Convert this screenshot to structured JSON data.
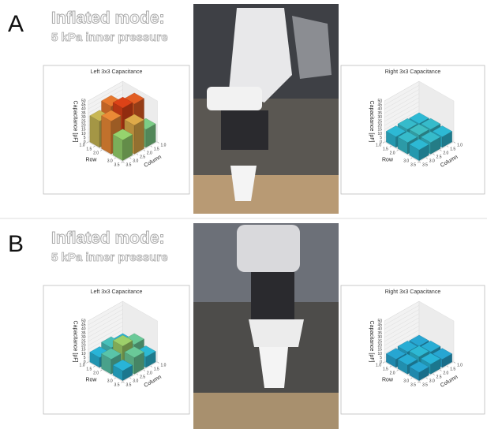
{
  "panels": [
    {
      "label": "A",
      "title": "Inflated mode:",
      "subtitle": "5 kPa inner pressure",
      "charts": [
        {
          "type": "bar3d",
          "title": "Left 3x3 Capacitance",
          "zlabel": "Capacitance [pF]",
          "rowlabel": "Row",
          "collabel": "Column",
          "values": [
            [
              28,
              42,
              32
            ],
            [
              45,
              48,
              40
            ],
            [
              22,
              35,
              25
            ]
          ],
          "zlim": [
            0,
            50
          ],
          "zticks": [
            0,
            5,
            10,
            15,
            20,
            25,
            30,
            35,
            40,
            45,
            50
          ],
          "rowlim": [
            1,
            3.5
          ],
          "rowticks": [
            {
              "value": 1,
              "label": "1.0"
            },
            {
              "value": 1.5,
              "label": "1.5"
            },
            {
              "value": 2,
              "label": "2.0"
            },
            {
              "value": 3,
              "label": "3.0"
            },
            {
              "value": 3.5,
              "label": "3.5"
            }
          ],
          "collim": [
            1,
            3.5
          ],
          "colticks": [
            {
              "value": 1,
              "label": "1.0"
            },
            {
              "value": 1.5,
              "label": "1.5"
            },
            {
              "value": 2,
              "label": "2.0"
            },
            {
              "value": 2.5,
              "label": "2.5"
            },
            {
              "value": 3,
              "label": "3.0"
            },
            {
              "value": 3.5,
              "label": "3.5"
            }
          ],
          "colormap": [
            "#1f5fb8",
            "#29b8d8",
            "#96d46e",
            "#f0a040",
            "#d8300f"
          ]
        },
        {
          "type": "bar3d",
          "title": "Right 3x3 Capacitance",
          "zlabel": "Capacitance [pF]",
          "rowlabel": "Row",
          "collabel": "Column",
          "values": [
            [
              13,
              14,
              13
            ],
            [
              14,
              15,
              14
            ],
            [
              13,
              14,
              13
            ]
          ],
          "zlim": [
            0,
            50
          ],
          "zticks": [
            0,
            5,
            10,
            15,
            20,
            25,
            30,
            35,
            40,
            45,
            50
          ],
          "rowlim": [
            1,
            3.5
          ],
          "rowticks": [
            {
              "value": 1,
              "label": "1.0"
            },
            {
              "value": 1.5,
              "label": "1.5"
            },
            {
              "value": 2,
              "label": "2.0"
            },
            {
              "value": 3,
              "label": "3.0"
            },
            {
              "value": 3.5,
              "label": "3.5"
            }
          ],
          "collim": [
            1,
            3.5
          ],
          "colticks": [
            {
              "value": 1,
              "label": "1.0"
            },
            {
              "value": 1.5,
              "label": "1.5"
            },
            {
              "value": 2,
              "label": "2.0"
            },
            {
              "value": 2.5,
              "label": "2.5"
            },
            {
              "value": 3,
              "label": "3.0"
            },
            {
              "value": 3.5,
              "label": "3.5"
            }
          ],
          "colormap": [
            "#1f5fb8",
            "#29b8d8",
            "#96d46e",
            "#f0a040",
            "#d8300f"
          ]
        }
      ]
    },
    {
      "label": "B",
      "title": "Inflated mode:",
      "subtitle": "5 kPa inner pressure",
      "charts": [
        {
          "type": "bar3d",
          "title": "Left 3x3 Capacitance",
          "zlabel": "Capacitance [pF]",
          "rowlabel": "Row",
          "collabel": "Column",
          "values": [
            [
              12,
              16,
              12
            ],
            [
              20,
              26,
              18
            ],
            [
              13,
              20,
              12
            ]
          ],
          "zlim": [
            0,
            50
          ],
          "zticks": [
            0,
            5,
            10,
            15,
            20,
            25,
            30,
            35,
            40,
            45,
            50
          ],
          "rowlim": [
            1,
            3.5
          ],
          "rowticks": [
            {
              "value": 1,
              "label": "1.0"
            },
            {
              "value": 1.5,
              "label": "1.5"
            },
            {
              "value": 2,
              "label": "2.0"
            },
            {
              "value": 3,
              "label": "3.0"
            },
            {
              "value": 3.5,
              "label": "3.5"
            }
          ],
          "collim": [
            1,
            3.5
          ],
          "colticks": [
            {
              "value": 1,
              "label": "1.0"
            },
            {
              "value": 1.5,
              "label": "1.5"
            },
            {
              "value": 2,
              "label": "2.0"
            },
            {
              "value": 2.5,
              "label": "2.5"
            },
            {
              "value": 3,
              "label": "3.0"
            },
            {
              "value": 3.5,
              "label": "3.5"
            }
          ],
          "colormap": [
            "#1f5fb8",
            "#29b8d8",
            "#96d46e",
            "#f0a040",
            "#d8300f"
          ]
        },
        {
          "type": "bar3d",
          "title": "Right 3x3 Capacitance",
          "zlabel": "Capacitance [pF]",
          "rowlabel": "Row",
          "collabel": "Column",
          "values": [
            [
              10,
              11,
              10
            ],
            [
              11,
              13,
              11
            ],
            [
              10,
              12,
              10
            ]
          ],
          "zlim": [
            0,
            50
          ],
          "zticks": [
            0,
            5,
            10,
            15,
            20,
            25,
            30,
            35,
            40,
            45,
            50
          ],
          "rowlim": [
            1,
            3.5
          ],
          "rowticks": [
            {
              "value": 1,
              "label": "1.0"
            },
            {
              "value": 1.5,
              "label": "1.5"
            },
            {
              "value": 2,
              "label": "2.0"
            },
            {
              "value": 3,
              "label": "3.0"
            },
            {
              "value": 3.5,
              "label": "3.5"
            }
          ],
          "collim": [
            1,
            3.5
          ],
          "colticks": [
            {
              "value": 1,
              "label": "1.0"
            },
            {
              "value": 1.5,
              "label": "1.5"
            },
            {
              "value": 2,
              "label": "2.0"
            },
            {
              "value": 2.5,
              "label": "2.5"
            },
            {
              "value": 3,
              "label": "3.0"
            },
            {
              "value": 3.5,
              "label": "3.5"
            }
          ],
          "colormap": [
            "#1f5fb8",
            "#29b8d8",
            "#96d46e",
            "#f0a040",
            "#d8300f"
          ]
        }
      ]
    }
  ]
}
